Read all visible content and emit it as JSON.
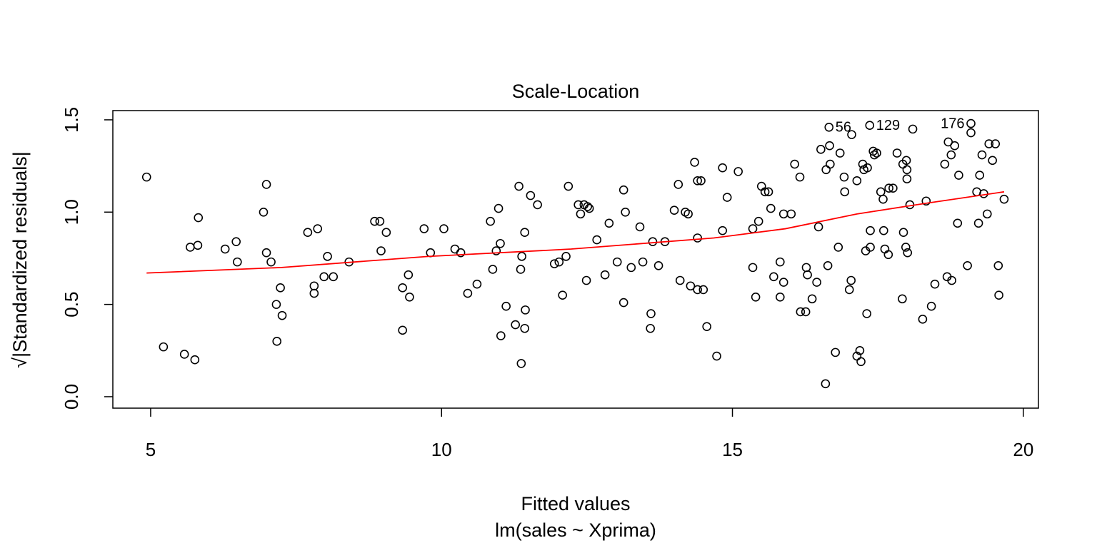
{
  "chart_data": {
    "type": "scatter",
    "title": "Scale-Location",
    "xlabel": "Fitted values",
    "subtitle": "lm(sales ~ Xprima)",
    "ylabel": "√|Standardized residuals|",
    "xlim": [
      4.35,
      20.26
    ],
    "ylim": [
      -0.062,
      1.55
    ],
    "xticks": [
      5,
      10,
      15,
      20
    ],
    "yticks": [
      {
        "value": 0,
        "label": "0.0"
      },
      0.5,
      {
        "value": 1,
        "label": "1.0"
      },
      1.5
    ],
    "grid": false,
    "points": {
      "color": "#000000",
      "x": [
        4.93,
        5.22,
        5.58,
        5.68,
        5.76,
        5.81,
        5.82,
        6.28,
        6.47,
        6.49,
        6.94,
        6.99,
        6.99,
        7.07,
        7.16,
        7.17,
        7.23,
        7.26,
        7.7,
        7.81,
        7.81,
        7.87,
        7.98,
        8.04,
        8.14,
        8.41,
        8.85,
        8.94,
        8.96,
        9.05,
        9.33,
        9.33,
        9.43,
        9.45,
        9.7,
        9.81,
        10.04,
        10.23,
        10.33,
        10.45,
        10.61,
        10.84,
        10.88,
        10.94,
        10.98,
        11.01,
        11.02,
        11.11,
        11.27,
        11.33,
        11.36,
        11.37,
        11.38,
        11.43,
        11.43,
        11.44,
        11.53,
        11.65,
        11.94,
        12.02,
        12.08,
        12.14,
        12.18,
        12.35,
        12.39,
        12.45,
        12.49,
        12.51,
        12.54,
        12.67,
        12.81,
        12.88,
        13.02,
        13.13,
        13.13,
        13.16,
        13.26,
        13.41,
        13.46,
        13.59,
        13.6,
        13.63,
        13.73,
        13.84,
        14.0,
        14.07,
        14.1,
        14.19,
        14.24,
        14.28,
        14.35,
        14.4,
        14.4,
        14.4,
        14.46,
        14.5,
        14.56,
        14.73,
        14.83,
        14.83,
        14.91,
        15.1,
        15.35,
        15.35,
        15.4,
        15.45,
        15.5,
        15.56,
        15.62,
        15.66,
        15.71,
        15.82,
        15.82,
        15.88,
        15.88,
        16.01,
        16.07,
        16.16,
        16.17,
        16.26,
        16.27,
        16.29,
        16.37,
        16.45,
        16.48,
        16.52,
        16.6,
        16.61,
        16.64,
        16.66,
        16.67,
        16.68,
        16.77,
        16.82,
        16.85,
        16.92,
        16.93,
        17.01,
        17.04,
        17.05,
        17.14,
        17.14,
        17.19,
        17.21,
        17.24,
        17.26,
        17.29,
        17.31,
        17.32,
        17.36,
        17.37,
        17.37,
        17.42,
        17.44,
        17.48,
        17.55,
        17.59,
        17.6,
        17.62,
        17.68,
        17.69,
        17.76,
        17.83,
        17.92,
        17.93,
        17.94,
        17.98,
        17.99,
        18.0,
        18.0,
        18.01,
        18.05,
        18.1,
        18.27,
        18.33,
        18.42,
        18.48,
        18.65,
        18.69,
        18.71,
        18.76,
        18.77,
        18.82,
        18.87,
        18.89,
        19.04,
        19.1,
        19.1,
        19.2,
        19.23,
        19.25,
        19.29,
        19.32,
        19.38,
        19.41,
        19.47,
        19.52,
        19.57,
        19.58,
        19.67
      ],
      "values": [
        1.19,
        0.27,
        0.23,
        0.81,
        0.2,
        0.82,
        0.97,
        0.8,
        0.84,
        0.73,
        1.0,
        1.15,
        0.78,
        0.73,
        0.5,
        0.3,
        0.59,
        0.44,
        0.89,
        0.6,
        0.56,
        0.91,
        0.65,
        0.76,
        0.65,
        0.73,
        0.95,
        0.95,
        0.79,
        0.89,
        0.36,
        0.59,
        0.66,
        0.54,
        0.91,
        0.78,
        0.91,
        0.8,
        0.78,
        0.56,
        0.61,
        0.95,
        0.69,
        0.79,
        1.02,
        0.83,
        0.33,
        0.49,
        0.39,
        1.14,
        0.69,
        0.18,
        0.76,
        0.37,
        0.89,
        0.47,
        1.09,
        1.04,
        0.72,
        0.73,
        0.55,
        0.76,
        1.14,
        1.04,
        0.99,
        1.04,
        0.63,
        1.03,
        1.02,
        0.85,
        0.66,
        0.94,
        0.73,
        0.51,
        1.12,
        1.0,
        0.7,
        0.92,
        0.73,
        0.37,
        0.45,
        0.84,
        0.71,
        0.84,
        1.01,
        1.15,
        0.63,
        1.0,
        0.99,
        0.6,
        1.27,
        0.86,
        0.58,
        1.17,
        1.17,
        0.58,
        0.38,
        0.22,
        0.9,
        1.24,
        1.08,
        1.22,
        0.7,
        0.91,
        0.54,
        0.95,
        1.14,
        1.11,
        1.11,
        1.02,
        0.65,
        0.73,
        0.54,
        0.62,
        0.99,
        0.99,
        1.26,
        1.19,
        0.46,
        0.46,
        0.7,
        0.66,
        0.53,
        0.62,
        0.92,
        1.34,
        0.07,
        1.23,
        0.71,
        1.46,
        1.36,
        1.26,
        0.24,
        0.81,
        1.32,
        1.19,
        1.11,
        0.58,
        0.63,
        1.42,
        1.17,
        0.22,
        0.25,
        0.19,
        1.26,
        1.23,
        0.79,
        0.45,
        1.24,
        1.47,
        0.9,
        0.81,
        1.33,
        1.31,
        1.32,
        1.11,
        1.07,
        0.9,
        0.8,
        0.77,
        1.13,
        1.13,
        1.32,
        0.53,
        1.26,
        0.89,
        0.81,
        1.28,
        1.23,
        1.18,
        0.78,
        1.04,
        1.45,
        0.42,
        1.06,
        0.49,
        0.61,
        1.26,
        0.65,
        1.38,
        1.31,
        0.63,
        1.36,
        0.94,
        1.2,
        0.71,
        1.48,
        1.43,
        1.11,
        0.94,
        1.2,
        1.31,
        1.1,
        0.99,
        1.37,
        1.28,
        1.37,
        0.71,
        0.55,
        1.07
      ]
    },
    "smooth": {
      "color": "#ff0000",
      "x": [
        4.93,
        7.25,
        9.77,
        12.23,
        14.68,
        15.91,
        17.14,
        18.37,
        19.67
      ],
      "values": [
        0.67,
        0.7,
        0.76,
        0.8,
        0.86,
        0.91,
        0.99,
        1.05,
        1.11
      ]
    },
    "annotations": [
      {
        "text": "56",
        "x": 16.66,
        "y": 1.46
      },
      {
        "text": "129",
        "x": 17.36,
        "y": 1.47
      },
      {
        "text": "176",
        "x": 19.1,
        "y": 1.48
      }
    ]
  }
}
